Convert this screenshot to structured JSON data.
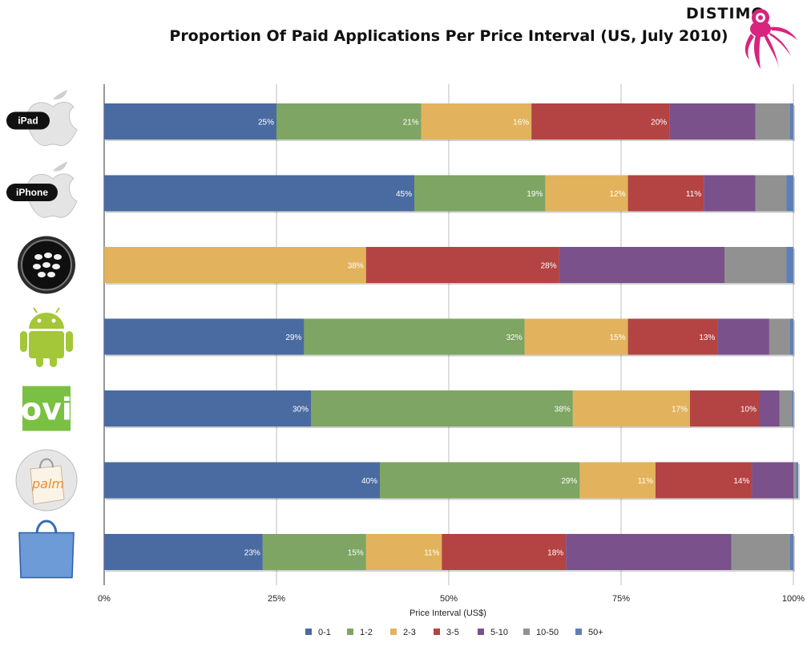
{
  "header": {
    "title": "Proportion Of Paid Applications Per Price Interval (US, July 2010)",
    "brand": "DISTIMO"
  },
  "colors": {
    "0-1": "#4a6ba1",
    "1-2": "#7ea563",
    "2-3": "#e2b35c",
    "3-5": "#b44343",
    "5-10": "#7a518b",
    "10-50": "#919191",
    "50+": "#5d7fb5"
  },
  "chart_data": {
    "type": "bar",
    "orientation": "horizontal",
    "stacked": true,
    "title": "Proportion Of Paid Applications Per Price Interval (US, July 2010)",
    "xlabel": "Price Interval (US$)",
    "xlim": [
      0,
      100
    ],
    "xticks": [
      "0%",
      "25%",
      "50%",
      "75%",
      "100%"
    ],
    "grid": true,
    "legend_position": "bottom",
    "categories": [
      "iPad",
      "iPhone",
      "BlackBerry",
      "Android",
      "Ovi",
      "Palm",
      "Windows Mobile"
    ],
    "platform_labels": [
      "iPad",
      "iPhone",
      "",
      "",
      "",
      "",
      ""
    ],
    "platform_icons": [
      "apple-icon",
      "apple-icon",
      "blackberry-icon",
      "android-icon",
      "ovi-icon",
      "palm-icon",
      "windows-marketplace-icon"
    ],
    "series": [
      {
        "name": "0-1",
        "values": [
          25,
          45,
          0,
          29,
          30,
          40,
          23
        ]
      },
      {
        "name": "1-2",
        "values": [
          21,
          19,
          0,
          32,
          38,
          29,
          15
        ]
      },
      {
        "name": "2-3",
        "values": [
          16,
          12,
          38,
          15,
          17,
          11,
          11
        ]
      },
      {
        "name": "3-5",
        "values": [
          20,
          11,
          28,
          13,
          10,
          14,
          18
        ]
      },
      {
        "name": "5-10",
        "values": [
          12.5,
          7.5,
          24,
          7.5,
          3,
          6,
          24
        ]
      },
      {
        "name": "10-50",
        "values": [
          5,
          4.5,
          9,
          3,
          1.8,
          0.4,
          8.5
        ]
      },
      {
        "name": "50+",
        "values": [
          0.5,
          1,
          1,
          0.5,
          0.2,
          0.3,
          0.5
        ]
      }
    ],
    "data_labels": [
      [
        "25%",
        "21%",
        "16%",
        "20%",
        "",
        "",
        ""
      ],
      [
        "45%",
        "19%",
        "12%",
        "11%",
        "",
        "",
        ""
      ],
      [
        "",
        "",
        "38%",
        "28%",
        "",
        "",
        ""
      ],
      [
        "29%",
        "32%",
        "15%",
        "13%",
        "",
        "",
        ""
      ],
      [
        "30%",
        "38%",
        "17%",
        "10%",
        "",
        "",
        ""
      ],
      [
        "40%",
        "29%",
        "11%",
        "14%",
        "",
        "",
        ""
      ],
      [
        "23%",
        "15%",
        "11%",
        "18%",
        "",
        "",
        ""
      ]
    ]
  }
}
